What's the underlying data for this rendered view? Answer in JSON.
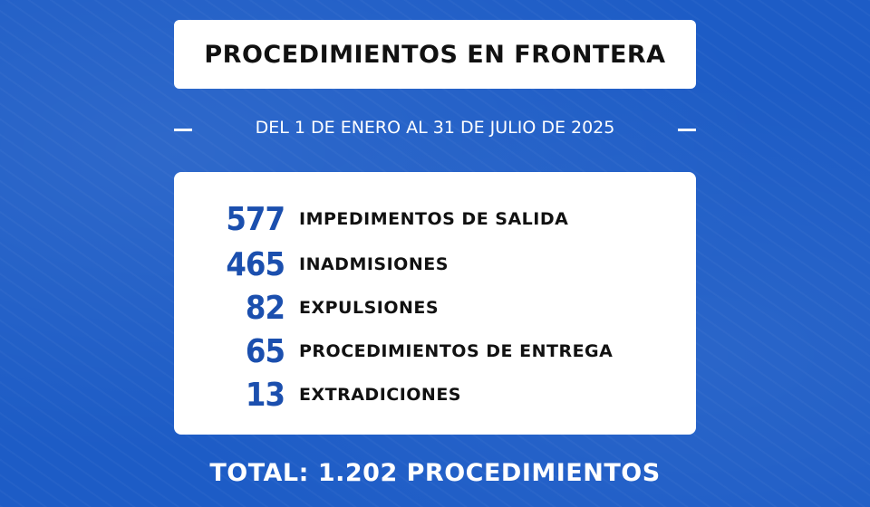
{
  "header": {
    "title": "PROCEDIMIENTOS EN FRONTERA",
    "subtitle": "DEL 1 DE ENERO AL 31 DE JULIO DE 2025"
  },
  "items": [
    {
      "value": 577,
      "label": "IMPEDIMENTOS DE SALIDA"
    },
    {
      "value": 465,
      "label": "INADMISIONES"
    },
    {
      "value": 82,
      "label": "EXPULSIONES"
    },
    {
      "value": 65,
      "label": "PROCEDIMIENTOS DE ENTREGA"
    },
    {
      "value": 13,
      "label": "EXTRADICIONES"
    }
  ],
  "total": "TOTAL: 1.202 PROCEDIMIENTOS"
}
